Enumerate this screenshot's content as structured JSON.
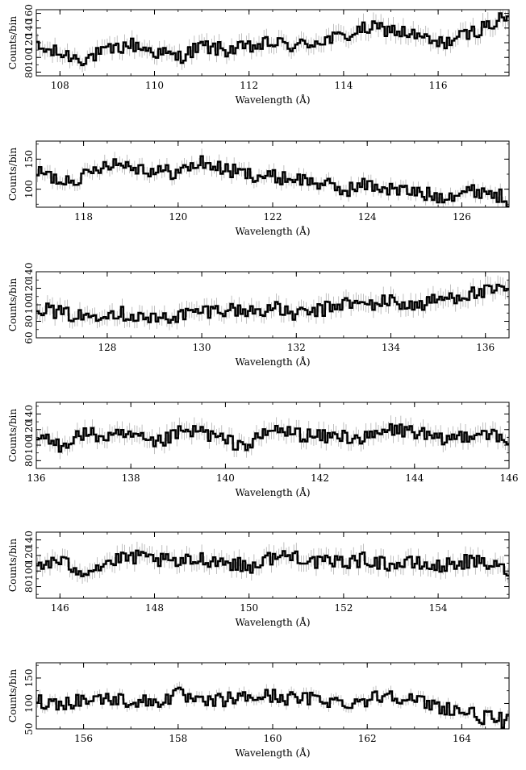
{
  "figure": {
    "xlabel": "Wavelength (Å)",
    "ylabel": "Counts/bin"
  },
  "chart_data": [
    {
      "type": "line",
      "step": true,
      "xlabel": "Wavelength (Å)",
      "ylabel": "Counts/bin",
      "xlim": [
        107.5,
        117.5
      ],
      "ylim": [
        75,
        165
      ],
      "xticks": [
        108,
        110,
        112,
        114,
        116
      ],
      "yticks": [
        80,
        100,
        120,
        140,
        160
      ],
      "series": [
        {
          "x": [
            107.5,
            108.0,
            108.5,
            109.0,
            109.5,
            110.0,
            110.5,
            111.0,
            111.5,
            112.0,
            112.5,
            113.0,
            113.5,
            114.0,
            114.5,
            115.0,
            115.5,
            116.0,
            116.5,
            117.0,
            117.5
          ],
          "y": [
            113,
            105,
            98,
            108,
            118,
            108,
            100,
            115,
            110,
            113,
            120,
            115,
            123,
            128,
            140,
            138,
            130,
            118,
            128,
            142,
            155
          ]
        }
      ]
    },
    {
      "type": "line",
      "step": true,
      "xlabel": "Wavelength (Å)",
      "ylabel": "Counts/bin",
      "xlim": [
        117,
        127
      ],
      "ylim": [
        70,
        180
      ],
      "xticks": [
        118,
        120,
        122,
        124,
        126
      ],
      "yticks": [
        100,
        150
      ],
      "series": [
        {
          "x": [
            117.0,
            117.5,
            118.0,
            118.5,
            119.0,
            119.5,
            120.0,
            120.5,
            121.0,
            121.5,
            122.0,
            122.5,
            123.0,
            123.5,
            124.0,
            124.5,
            125.0,
            125.5,
            126.0,
            126.5,
            127.0
          ],
          "y": [
            130,
            115,
            120,
            145,
            140,
            130,
            128,
            145,
            132,
            125,
            120,
            118,
            110,
            98,
            108,
            100,
            95,
            88,
            95,
            98,
            82
          ]
        }
      ]
    },
    {
      "type": "line",
      "step": true,
      "xlabel": "Wavelength (Å)",
      "ylabel": "Counts/bin",
      "xlim": [
        126.5,
        136.5
      ],
      "ylim": [
        60,
        140
      ],
      "xticks": [
        128,
        130,
        132,
        134,
        136
      ],
      "yticks": [
        60,
        80,
        100,
        120,
        140
      ],
      "series": [
        {
          "x": [
            126.5,
            127.0,
            127.5,
            128.0,
            128.5,
            129.0,
            129.5,
            130.0,
            130.5,
            131.0,
            131.5,
            132.0,
            132.5,
            133.0,
            133.5,
            134.0,
            134.5,
            135.0,
            135.5,
            136.0,
            136.5
          ],
          "y": [
            98,
            90,
            85,
            92,
            88,
            82,
            87,
            92,
            95,
            92,
            96,
            88,
            93,
            102,
            100,
            105,
            98,
            106,
            112,
            115,
            118
          ]
        }
      ]
    },
    {
      "type": "line",
      "step": true,
      "xlabel": "Wavelength (Å)",
      "ylabel": "Counts/bin",
      "xlim": [
        136,
        146
      ],
      "ylim": [
        70,
        155
      ],
      "xticks": [
        136,
        138,
        140,
        142,
        144,
        146
      ],
      "yticks": [
        80,
        100,
        120,
        140
      ],
      "series": [
        {
          "x": [
            136.0,
            136.5,
            137.0,
            137.5,
            138.0,
            138.5,
            139.0,
            139.5,
            140.0,
            140.5,
            141.0,
            141.5,
            142.0,
            142.5,
            143.0,
            143.5,
            144.0,
            144.5,
            145.0,
            145.5,
            146.0
          ],
          "y": [
            110,
            100,
            115,
            110,
            112,
            100,
            115,
            118,
            105,
            100,
            120,
            115,
            110,
            112,
            108,
            120,
            118,
            105,
            112,
            118,
            100
          ]
        }
      ]
    },
    {
      "type": "line",
      "step": true,
      "xlabel": "Wavelength (Å)",
      "ylabel": "Counts/bin",
      "xlim": [
        145.5,
        155.5
      ],
      "ylim": [
        65,
        150
      ],
      "xticks": [
        146,
        148,
        150,
        152,
        154
      ],
      "yticks": [
        80,
        100,
        120,
        140
      ],
      "series": [
        {
          "x": [
            145.5,
            146.0,
            146.5,
            147.0,
            147.5,
            148.0,
            148.5,
            149.0,
            149.5,
            150.0,
            150.5,
            151.0,
            151.5,
            152.0,
            152.5,
            153.0,
            153.5,
            154.0,
            154.5,
            155.0,
            155.5
          ],
          "y": [
            108,
            112,
            100,
            110,
            118,
            115,
            110,
            116,
            112,
            105,
            118,
            120,
            110,
            112,
            115,
            108,
            110,
            105,
            112,
            110,
            100
          ]
        }
      ]
    },
    {
      "type": "line",
      "step": true,
      "xlabel": "Wavelength (Å)",
      "ylabel": "Counts/bin",
      "xlim": [
        155,
        165
      ],
      "ylim": [
        50,
        180
      ],
      "xticks": [
        156,
        158,
        160,
        162,
        164
      ],
      "yticks": [
        50,
        100,
        150
      ],
      "series": [
        {
          "x": [
            155.0,
            155.5,
            156.0,
            156.5,
            157.0,
            157.5,
            158.0,
            158.5,
            159.0,
            159.5,
            160.0,
            160.5,
            161.0,
            161.5,
            162.0,
            162.5,
            163.0,
            163.5,
            164.0,
            164.5,
            165.0
          ],
          "y": [
            105,
            100,
            108,
            110,
            105,
            102,
            118,
            100,
            108,
            112,
            115,
            108,
            110,
            100,
            108,
            120,
            105,
            95,
            85,
            72,
            65
          ]
        }
      ]
    }
  ]
}
